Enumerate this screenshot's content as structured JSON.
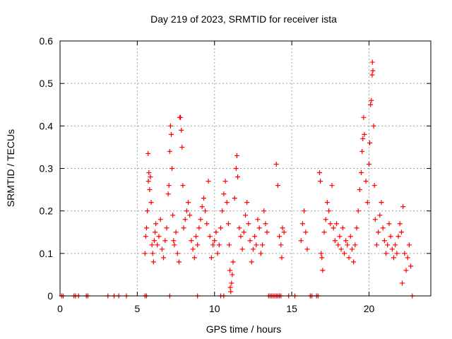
{
  "chart_data": {
    "type": "scatter",
    "title": "Day 219 of 2023, SRMTID for receiver ista",
    "xlabel": "GPS time / hours",
    "ylabel": "SRMTID / TECUs",
    "xlim": [
      0,
      24
    ],
    "ylim": [
      0,
      0.6
    ],
    "xticks": [
      0,
      5,
      10,
      15,
      20
    ],
    "xtick_labels": [
      "0",
      "5",
      "10",
      "15",
      "20"
    ],
    "yticks": [
      0,
      0.1,
      0.2,
      0.3,
      0.4,
      0.5,
      0.6
    ],
    "ytick_labels": [
      "0",
      "0.1",
      "0.2",
      "0.3",
      "0.4",
      "0.5",
      "0.6"
    ],
    "grid": true,
    "marker": "+",
    "color": "#ff0000",
    "series": [
      {
        "name": "SRMTID",
        "points": [
          [
            0.1,
            0
          ],
          [
            0.2,
            0
          ],
          [
            0.9,
            0
          ],
          [
            1.0,
            0
          ],
          [
            1.2,
            0
          ],
          [
            1.7,
            0
          ],
          [
            1.8,
            0
          ],
          [
            3.1,
            0
          ],
          [
            3.5,
            0
          ],
          [
            3.8,
            0
          ],
          [
            4.3,
            0
          ],
          [
            5.5,
            0
          ],
          [
            5.6,
            0
          ],
          [
            7.1,
            0
          ],
          [
            8.9,
            0
          ],
          [
            10.4,
            0
          ],
          [
            10.6,
            0
          ],
          [
            13.5,
            0
          ],
          [
            13.6,
            0
          ],
          [
            13.7,
            0
          ],
          [
            13.8,
            0
          ],
          [
            13.9,
            0
          ],
          [
            14.0,
            0
          ],
          [
            14.1,
            0
          ],
          [
            14.2,
            0
          ],
          [
            14.3,
            0
          ],
          [
            14.8,
            0
          ],
          [
            15.2,
            0
          ],
          [
            16.2,
            0
          ],
          [
            16.3,
            0
          ],
          [
            16.6,
            0
          ],
          [
            16.7,
            0
          ],
          [
            22.8,
            0
          ],
          [
            5.5,
            0.1
          ],
          [
            5.55,
            0.14
          ],
          [
            5.6,
            0.16
          ],
          [
            5.65,
            0.2
          ],
          [
            5.7,
            0.335
          ],
          [
            5.72,
            0.27
          ],
          [
            5.75,
            0.29
          ],
          [
            5.8,
            0.25
          ],
          [
            5.85,
            0.28
          ],
          [
            5.9,
            0.22
          ],
          [
            5.95,
            0.12
          ],
          [
            6.0,
            0.1
          ],
          [
            6.05,
            0.08
          ],
          [
            6.1,
            0.13
          ],
          [
            6.15,
            0.15
          ],
          [
            6.2,
            0.17
          ],
          [
            6.3,
            0.12
          ],
          [
            6.4,
            0.14
          ],
          [
            6.5,
            0.18
          ],
          [
            6.6,
            0.11
          ],
          [
            6.7,
            0.09
          ],
          [
            6.8,
            0.13
          ],
          [
            6.9,
            0.16
          ],
          [
            7.0,
            0.24
          ],
          [
            7.05,
            0.26
          ],
          [
            7.1,
            0.34
          ],
          [
            7.15,
            0.4
          ],
          [
            7.2,
            0.38
          ],
          [
            7.25,
            0.3
          ],
          [
            7.3,
            0.19
          ],
          [
            7.35,
            0.13
          ],
          [
            7.4,
            0.12
          ],
          [
            7.5,
            0.15
          ],
          [
            7.6,
            0.1
          ],
          [
            7.7,
            0.08
          ],
          [
            7.75,
            0.42
          ],
          [
            7.8,
            0.42
          ],
          [
            7.85,
            0.39
          ],
          [
            7.9,
            0.35
          ],
          [
            7.95,
            0.26
          ],
          [
            8.0,
            0.16
          ],
          [
            8.1,
            0.18
          ],
          [
            8.2,
            0.2
          ],
          [
            8.3,
            0.22
          ],
          [
            8.4,
            0.19
          ],
          [
            8.5,
            0.13
          ],
          [
            8.6,
            0.11
          ],
          [
            8.7,
            0.09
          ],
          [
            8.8,
            0.14
          ],
          [
            8.9,
            0.12
          ],
          [
            9.0,
            0.16
          ],
          [
            9.1,
            0.18
          ],
          [
            9.2,
            0.21
          ],
          [
            9.3,
            0.23
          ],
          [
            9.4,
            0.2
          ],
          [
            9.5,
            0.17
          ],
          [
            9.6,
            0.27
          ],
          [
            9.7,
            0.14
          ],
          [
            9.8,
            0.09
          ],
          [
            9.9,
            0.12
          ],
          [
            10.0,
            0.13
          ],
          [
            10.1,
            0.15
          ],
          [
            10.2,
            0.1
          ],
          [
            10.3,
            0.12
          ],
          [
            10.4,
            0.16
          ],
          [
            10.5,
            0.2
          ],
          [
            10.6,
            0.24
          ],
          [
            10.7,
            0.27
          ],
          [
            10.8,
            0.22
          ],
          [
            10.9,
            0.17
          ],
          [
            10.95,
            0.12
          ],
          [
            11.0,
            0.06
          ],
          [
            11.02,
            0.02
          ],
          [
            11.05,
            0.01
          ],
          [
            11.1,
            0.03
          ],
          [
            11.15,
            0.05
          ],
          [
            11.2,
            0.08
          ],
          [
            11.3,
            0.23
          ],
          [
            11.4,
            0.3
          ],
          [
            11.45,
            0.33
          ],
          [
            11.5,
            0.28
          ],
          [
            11.6,
            0.16
          ],
          [
            11.7,
            0.14
          ],
          [
            11.8,
            0.11
          ],
          [
            11.9,
            0.15
          ],
          [
            12.0,
            0.19
          ],
          [
            12.1,
            0.22
          ],
          [
            12.2,
            0.17
          ],
          [
            12.3,
            0.13
          ],
          [
            12.4,
            0.08
          ],
          [
            12.5,
            0.11
          ],
          [
            12.6,
            0.14
          ],
          [
            12.7,
            0.12
          ],
          [
            12.8,
            0.18
          ],
          [
            12.9,
            0.16
          ],
          [
            13.0,
            0.1
          ],
          [
            13.1,
            0.12
          ],
          [
            13.2,
            0.2
          ],
          [
            13.3,
            0.17
          ],
          [
            13.4,
            0.15
          ],
          [
            14.0,
            0.31
          ],
          [
            14.1,
            0.26
          ],
          [
            14.2,
            0.14
          ],
          [
            14.3,
            0.12
          ],
          [
            14.35,
            0.09
          ],
          [
            14.4,
            0.16
          ],
          [
            14.5,
            0.15
          ],
          [
            15.6,
            0.13
          ],
          [
            15.7,
            0.17
          ],
          [
            15.8,
            0.2
          ],
          [
            15.9,
            0.15
          ],
          [
            16.0,
            0.11
          ],
          [
            16.8,
            0.29
          ],
          [
            16.85,
            0.27
          ],
          [
            16.9,
            0.1
          ],
          [
            16.95,
            0.09
          ],
          [
            17.0,
            0.06
          ],
          [
            17.1,
            0.15
          ],
          [
            17.2,
            0.18
          ],
          [
            17.3,
            0.22
          ],
          [
            17.4,
            0.2
          ],
          [
            17.5,
            0.17
          ],
          [
            17.6,
            0.26
          ],
          [
            17.7,
            0.16
          ],
          [
            17.8,
            0.13
          ],
          [
            17.9,
            0.17
          ],
          [
            18.0,
            0.12
          ],
          [
            18.1,
            0.14
          ],
          [
            18.2,
            0.11
          ],
          [
            18.3,
            0.16
          ],
          [
            18.4,
            0.1
          ],
          [
            18.5,
            0.13
          ],
          [
            18.6,
            0.12
          ],
          [
            18.7,
            0.09
          ],
          [
            18.8,
            0.14
          ],
          [
            18.9,
            0.11
          ],
          [
            19.0,
            0.08
          ],
          [
            19.1,
            0.12
          ],
          [
            19.2,
            0.16
          ],
          [
            19.3,
            0.2
          ],
          [
            19.4,
            0.25
          ],
          [
            19.5,
            0.29
          ],
          [
            19.55,
            0.34
          ],
          [
            19.6,
            0.37
          ],
          [
            19.65,
            0.42
          ],
          [
            19.7,
            0.38
          ],
          [
            19.8,
            0.27
          ],
          [
            19.9,
            0.22
          ],
          [
            20.0,
            0.31
          ],
          [
            20.05,
            0.36
          ],
          [
            20.1,
            0.45
          ],
          [
            20.15,
            0.46
          ],
          [
            20.2,
            0.52
          ],
          [
            20.22,
            0.55
          ],
          [
            20.25,
            0.53
          ],
          [
            20.3,
            0.4
          ],
          [
            20.35,
            0.26
          ],
          [
            20.4,
            0.18
          ],
          [
            20.5,
            0.12
          ],
          [
            20.6,
            0.15
          ],
          [
            20.7,
            0.19
          ],
          [
            20.8,
            0.22
          ],
          [
            20.9,
            0.16
          ],
          [
            21.0,
            0.13
          ],
          [
            21.1,
            0.1
          ],
          [
            21.2,
            0.12
          ],
          [
            21.3,
            0.17
          ],
          [
            21.4,
            0.14
          ],
          [
            21.5,
            0.11
          ],
          [
            21.6,
            0.09
          ],
          [
            21.7,
            0.12
          ],
          [
            21.8,
            0.1
          ],
          [
            21.9,
            0.14
          ],
          [
            22.0,
            0.17
          ],
          [
            22.1,
            0.15
          ],
          [
            22.15,
            0.03
          ],
          [
            22.2,
            0.21
          ],
          [
            22.3,
            0.1
          ],
          [
            22.4,
            0.06
          ],
          [
            22.5,
            0.09
          ],
          [
            22.6,
            0.12
          ],
          [
            22.7,
            0.07
          ]
        ]
      }
    ]
  }
}
